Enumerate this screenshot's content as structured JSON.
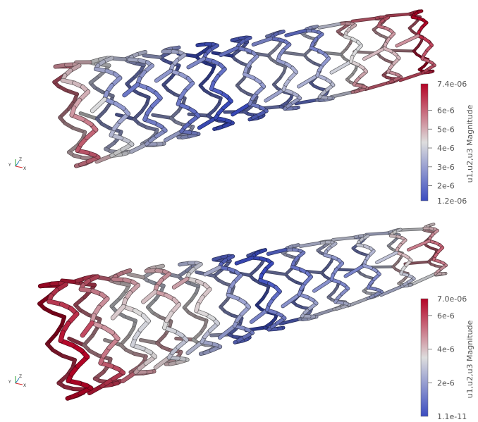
{
  "views": [
    {
      "id": "top",
      "colorbar": {
        "title": "u1,u2,u3 Magnitude",
        "max_label": "7.4e-06",
        "min_label": "1.2e-06",
        "ticks": [
          "6e-6",
          "5e-6",
          "4e-6",
          "3e-6",
          "2e-6"
        ],
        "tick_values": [
          6e-06,
          5e-06,
          4e-06,
          3e-06,
          2e-06
        ],
        "range": [
          1.2e-06,
          7.4e-06
        ]
      },
      "orientation_axes": {
        "y": "Y",
        "z": "Z",
        "x": "X"
      }
    },
    {
      "id": "bottom",
      "colorbar": {
        "title": "u1,u2,u3 Magnitude",
        "max_label": "7.0e-06",
        "min_label": "1.1e-11",
        "ticks": [
          "6e-6",
          "4e-6",
          "2e-6"
        ],
        "tick_values": [
          6e-06,
          4e-06,
          2e-06
        ],
        "range": [
          1.1e-11,
          7e-06
        ]
      },
      "orientation_axes": {
        "y": "Y",
        "z": "Z",
        "x": "X"
      }
    }
  ],
  "colormap": {
    "name": "cool-to-warm",
    "low": "#3b4cc0",
    "mid": "#dddddd",
    "high": "#b40426"
  }
}
